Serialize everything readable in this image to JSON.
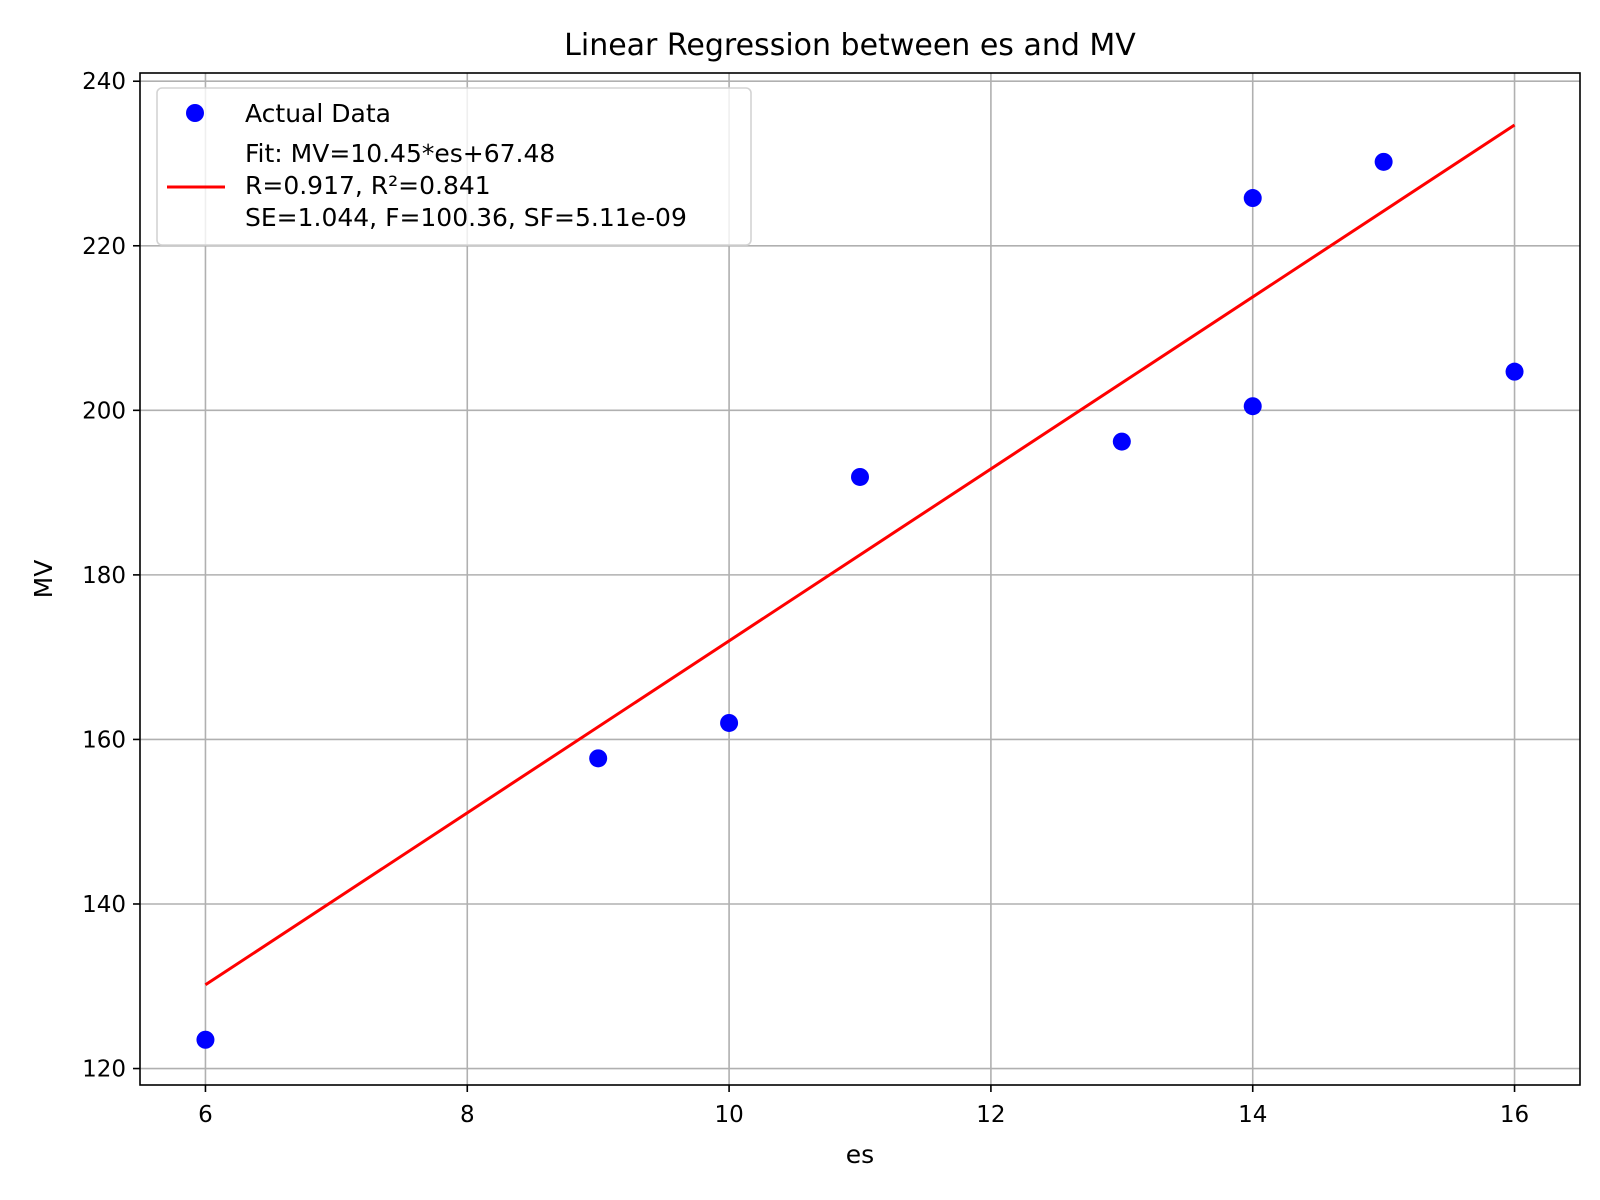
{
  "chart_data": {
    "type": "scatter",
    "title": "Linear Regression between es and MV",
    "xlabel": "es",
    "ylabel": "MV",
    "xlim": [
      5.5,
      16.5
    ],
    "ylim": [
      118,
      241
    ],
    "xticks": [
      6,
      8,
      10,
      12,
      14,
      16
    ],
    "yticks": [
      120,
      140,
      160,
      180,
      200,
      220,
      240
    ],
    "grid": true,
    "legend_position": "top-left",
    "series": [
      {
        "name": "Actual Data",
        "kind": "scatter",
        "color": "#0000ff",
        "points": [
          {
            "x": 6,
            "y": 123.5
          },
          {
            "x": 9,
            "y": 157.7
          },
          {
            "x": 10,
            "y": 162.0
          },
          {
            "x": 11,
            "y": 191.9
          },
          {
            "x": 13,
            "y": 196.2
          },
          {
            "x": 14,
            "y": 200.5
          },
          {
            "x": 14,
            "y": 225.8
          },
          {
            "x": 15,
            "y": 230.2
          },
          {
            "x": 16,
            "y": 204.7
          }
        ]
      },
      {
        "name": "Fit: MV=10.45*es+67.48",
        "kind": "line",
        "color": "#ff0000",
        "name_lines": [
          "Fit: MV=10.45*es+67.48",
          "R=0.917, R²=0.841",
          "SE=1.044, F=100.36, SF=5.11e-09"
        ],
        "points": [
          {
            "x": 6,
            "y": 130.18
          },
          {
            "x": 16,
            "y": 234.68
          }
        ]
      }
    ]
  }
}
